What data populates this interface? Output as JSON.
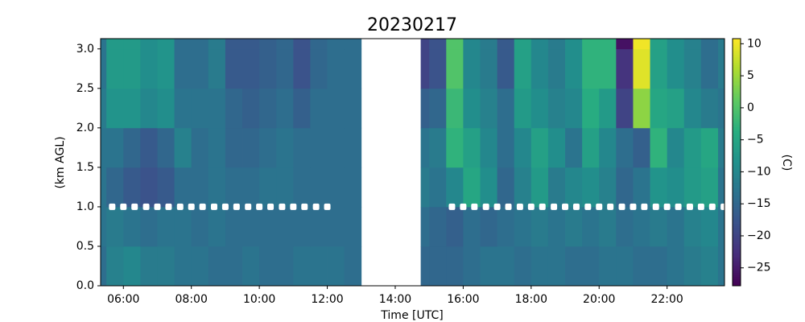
{
  "chart_data": {
    "type": "heatmap",
    "title": "20230217",
    "x_label": "Time [UTC]",
    "y_label": "(km AGL)",
    "colorbar_label": "(C)",
    "cmap": "viridis",
    "clim": [
      -27.8,
      10.8
    ],
    "cticks": [
      10,
      5,
      0,
      {
        "value": -5,
        "label": "−5"
      },
      {
        "value": -10,
        "label": "−10"
      },
      {
        "value": -15,
        "label": "−15"
      },
      {
        "value": -20,
        "label": "−20"
      },
      {
        "value": -25,
        "label": "−25"
      }
    ],
    "xlim": [
      5.33,
      23.69
    ],
    "ylim": [
      0,
      3.13
    ],
    "xticks": [
      {
        "value": 6,
        "label": "06:00"
      },
      {
        "value": 8,
        "label": "08:00"
      },
      {
        "value": 10,
        "label": "10:00"
      },
      {
        "value": 12,
        "label": "12:00"
      },
      {
        "value": 14,
        "label": "14:00"
      },
      {
        "value": 16,
        "label": "16:00"
      },
      {
        "value": 18,
        "label": "18:00"
      },
      {
        "value": 20,
        "label": "20:00"
      },
      {
        "value": 22,
        "label": "22:00"
      }
    ],
    "yticks": [
      {
        "value": 0,
        "label": "0.0"
      },
      0.5,
      {
        "value": 1,
        "label": "1.0"
      },
      1.5,
      {
        "value": 2,
        "label": "2.0"
      },
      2.5,
      {
        "value": 3,
        "label": "3.0"
      }
    ],
    "xbins": [
      5.33,
      5.5,
      6,
      6.5,
      7,
      7.5,
      8,
      8.5,
      9,
      9.5,
      10,
      10.5,
      11,
      11.5,
      12,
      12.5,
      13,
      13.5,
      14,
      14.5,
      14.75,
      15,
      15.5,
      16,
      16.5,
      17,
      17.5,
      18,
      18.5,
      19,
      19.5,
      20,
      20.5,
      21,
      21.5,
      22,
      22.5,
      23,
      23.5,
      23.69
    ],
    "ybins": [
      0,
      0.5,
      1.0,
      1.5,
      2.0,
      2.5,
      3.0,
      3.13
    ],
    "z": [
      [
        -14,
        -11,
        -10,
        -12,
        -12,
        -13,
        -13,
        -14,
        -14,
        -13,
        -14,
        -14,
        -13,
        -13,
        -13,
        -14,
        null,
        null,
        null,
        null,
        -15,
        -15,
        -15,
        -14,
        -13,
        -13,
        -14,
        -13,
        -13,
        -14,
        -14,
        -13,
        -13,
        -14,
        -14,
        -13,
        -12,
        -11,
        -13
      ],
      [
        -13,
        -12,
        -13,
        -14,
        -13,
        -13,
        -14,
        -13,
        -14,
        -14,
        -14,
        -14,
        -14,
        -14,
        -14,
        -14,
        null,
        null,
        null,
        null,
        -14,
        -15,
        -16,
        -14,
        -15,
        -14,
        -13,
        -12,
        -13,
        -12,
        -13,
        -12,
        -14,
        -13,
        -12,
        -13,
        -11,
        -10,
        -13
      ],
      [
        -13,
        -15,
        -17,
        -18,
        -17,
        -14,
        -14,
        -13,
        -14,
        -14,
        -13,
        -13,
        -14,
        -14,
        -14,
        -14,
        null,
        null,
        null,
        null,
        -12,
        -13,
        -10,
        -5,
        -9,
        -15,
        -11,
        -7,
        -12,
        -10,
        -9,
        -11,
        -15,
        -13,
        -8,
        -9,
        -7,
        -6,
        -13
      ],
      [
        -13,
        -13,
        -15,
        -17,
        -15,
        -11,
        -14,
        -13,
        -15,
        -15,
        -14,
        -13,
        -14,
        -14,
        -14,
        -14,
        null,
        null,
        null,
        null,
        -13,
        -12,
        -3,
        -6,
        -10,
        -14,
        -10,
        -6,
        -9,
        -13,
        -6,
        -10,
        -14,
        -16,
        -3,
        -10,
        -7,
        -5,
        -12
      ],
      [
        -12,
        -8,
        -8,
        -10,
        -9,
        -13,
        -13,
        -13,
        -15,
        -16,
        -15,
        -14,
        -16,
        -14,
        -14,
        -14,
        null,
        null,
        null,
        null,
        -16,
        -15,
        -2,
        -9,
        -11,
        -14,
        -7,
        -9,
        -11,
        -10,
        -4,
        -7,
        -20,
        4,
        -5,
        -6,
        -10,
        -12,
        -13
      ],
      [
        -13,
        -7,
        -7,
        -9,
        -8,
        -14,
        -14,
        -12,
        -17,
        -17,
        -16,
        -15,
        -18,
        -15,
        -14,
        -14,
        null,
        null,
        null,
        null,
        -20,
        -18,
        0,
        -10,
        -12,
        -17,
        -6,
        -10,
        -12,
        -9,
        -3,
        -3,
        -22,
        9,
        -6,
        -9,
        -11,
        -14,
        -12
      ],
      [
        -13,
        -7,
        -7,
        -9,
        -8,
        -14,
        -14,
        -12,
        -17,
        -17,
        -16,
        -15,
        -18,
        -15,
        -14,
        -14,
        null,
        null,
        null,
        null,
        -20,
        -18,
        0,
        -10,
        -12,
        -17,
        -6,
        -10,
        -12,
        -9,
        -3,
        -3,
        -26,
        10,
        -6,
        -9,
        -11,
        -14,
        -12
      ]
    ],
    "markers": {
      "color": "#ffffff",
      "x": [
        5.67,
        6,
        6.33,
        6.67,
        7,
        7.33,
        7.67,
        8,
        8.33,
        8.67,
        9,
        9.33,
        9.67,
        10,
        10.33,
        10.67,
        11,
        11.33,
        11.67,
        12,
        15.67,
        16,
        16.33,
        16.67,
        17,
        17.33,
        17.67,
        18,
        18.33,
        18.67,
        19,
        19.33,
        19.67,
        20,
        20.33,
        20.67,
        21,
        21.33,
        21.67,
        22,
        22.33,
        22.67,
        23,
        23.33,
        23.67
      ],
      "values": [
        1,
        1,
        1,
        1,
        1,
        1,
        1,
        1,
        1,
        1,
        1,
        1,
        1,
        1,
        1,
        1,
        1,
        1,
        1,
        1,
        1,
        1,
        1,
        1,
        1,
        1,
        1,
        1,
        1,
        1,
        1,
        1,
        1,
        1,
        1,
        1,
        1,
        1,
        1,
        1,
        1,
        1,
        1,
        1,
        1
      ]
    }
  }
}
